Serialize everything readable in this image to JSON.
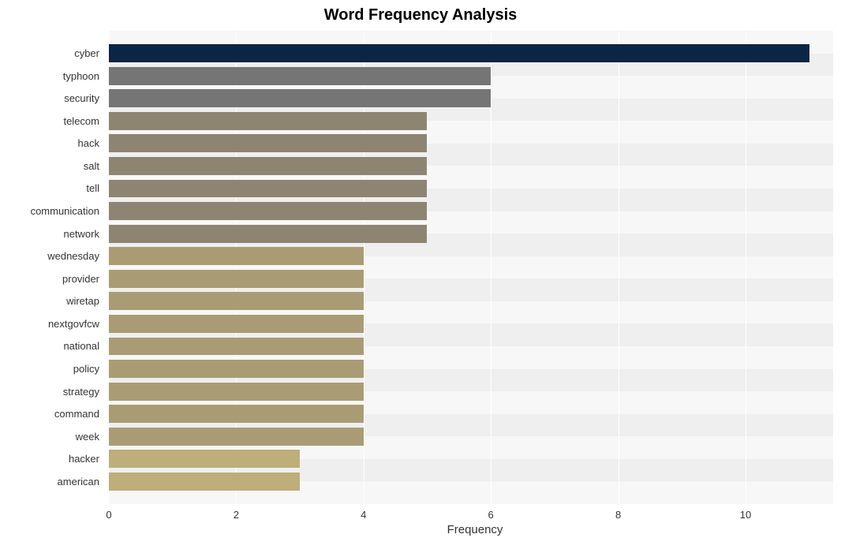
{
  "chart": {
    "type": "bar-horizontal",
    "title": "Word Frequency Analysis",
    "title_fontsize": 20,
    "title_fontweight": "bold",
    "xlabel": "Frequency",
    "label_fontsize": 15,
    "tick_fontsize": 13,
    "background_color": "#ffffff",
    "plot_background": "#f7f7f7",
    "stripe_color": "#efefef",
    "grid_color": "#ffffff",
    "xlim": [
      0,
      11.5
    ],
    "xticks": [
      0,
      2,
      4,
      6,
      8,
      10
    ],
    "y_axis_width": 128,
    "plot_area_width": 928,
    "plot_area_height": 600,
    "row_height": 28.57,
    "bar_fill_ratio": 0.8,
    "gap_ratio": 0.2,
    "top_pad_rows": 0.5,
    "bottom_pad_rows": 0.5,
    "bars": [
      {
        "label": "cyber",
        "value": 11,
        "color": "#0b2545"
      },
      {
        "label": "typhoon",
        "value": 6,
        "color": "#757575"
      },
      {
        "label": "security",
        "value": 6,
        "color": "#757575"
      },
      {
        "label": "telecom",
        "value": 5,
        "color": "#8d8572"
      },
      {
        "label": "hack",
        "value": 5,
        "color": "#8d8572"
      },
      {
        "label": "salt",
        "value": 5,
        "color": "#8d8572"
      },
      {
        "label": "tell",
        "value": 5,
        "color": "#8d8572"
      },
      {
        "label": "communication",
        "value": 5,
        "color": "#8d8572"
      },
      {
        "label": "network",
        "value": 5,
        "color": "#8d8572"
      },
      {
        "label": "wednesday",
        "value": 4,
        "color": "#a99c75"
      },
      {
        "label": "provider",
        "value": 4,
        "color": "#a99c75"
      },
      {
        "label": "wiretap",
        "value": 4,
        "color": "#a99c75"
      },
      {
        "label": "nextgovfcw",
        "value": 4,
        "color": "#a99c75"
      },
      {
        "label": "national",
        "value": 4,
        "color": "#a99c75"
      },
      {
        "label": "policy",
        "value": 4,
        "color": "#a99c75"
      },
      {
        "label": "strategy",
        "value": 4,
        "color": "#a99c75"
      },
      {
        "label": "command",
        "value": 4,
        "color": "#a99c75"
      },
      {
        "label": "week",
        "value": 4,
        "color": "#a99c75"
      },
      {
        "label": "hacker",
        "value": 3,
        "color": "#bdae7a"
      },
      {
        "label": "american",
        "value": 3,
        "color": "#bdae7a"
      }
    ]
  }
}
